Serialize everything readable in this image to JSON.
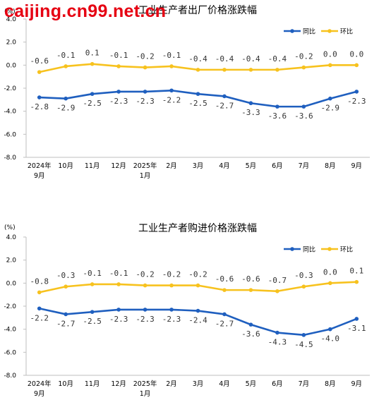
{
  "watermark": "caijing.cn99.net.cn",
  "colors": {
    "yoy": "#1f5fbf",
    "mom": "#f7c21e"
  },
  "chart_data": [
    {
      "type": "line",
      "title": "工业生产者出厂价格涨跌幅",
      "ylabel": "(%)",
      "ylim": [
        -8.0,
        4.0
      ],
      "yticks": [
        "4.0",
        "2.0",
        "0.0",
        "-2.0",
        "-4.0",
        "-6.0",
        "-8.0"
      ],
      "categories": [
        "2024年9月",
        "10月",
        "11月",
        "12月",
        "2025年1月",
        "2月",
        "3月",
        "4月",
        "5月",
        "6月",
        "7月",
        "8月",
        "9月"
      ],
      "series": [
        {
          "name": "同比",
          "values": [
            -2.8,
            -2.9,
            -2.5,
            -2.3,
            -2.3,
            -2.2,
            -2.5,
            -2.7,
            -3.3,
            -3.6,
            -3.6,
            -2.9,
            -2.3
          ]
        },
        {
          "name": "环比",
          "values": [
            -0.6,
            -0.1,
            0.1,
            -0.1,
            -0.2,
            -0.1,
            -0.4,
            -0.4,
            -0.4,
            -0.4,
            -0.2,
            0.0,
            0.0
          ]
        }
      ],
      "legend": "top-right",
      "grid": false
    },
    {
      "type": "line",
      "title": "工业生产者购进价格涨跌幅",
      "ylabel": "(%)",
      "ylim": [
        -8.0,
        4.0
      ],
      "yticks": [
        "4.0",
        "2.0",
        "0.0",
        "-2.0",
        "-4.0",
        "-6.0",
        "-8.0"
      ],
      "categories": [
        "2024年9月",
        "10月",
        "11月",
        "12月",
        "2025年1月",
        "2月",
        "3月",
        "4月",
        "5月",
        "6月",
        "7月",
        "8月",
        "9月"
      ],
      "series": [
        {
          "name": "同比",
          "values": [
            -2.2,
            -2.7,
            -2.5,
            -2.3,
            -2.3,
            -2.3,
            -2.4,
            -2.7,
            -3.6,
            -4.3,
            -4.5,
            -4.0,
            -3.1
          ]
        },
        {
          "name": "环比",
          "values": [
            -0.8,
            -0.3,
            -0.1,
            -0.1,
            -0.2,
            -0.2,
            -0.2,
            -0.6,
            -0.6,
            -0.7,
            -0.3,
            0.0,
            0.1
          ]
        }
      ],
      "legend": "top-right",
      "grid": false
    }
  ]
}
